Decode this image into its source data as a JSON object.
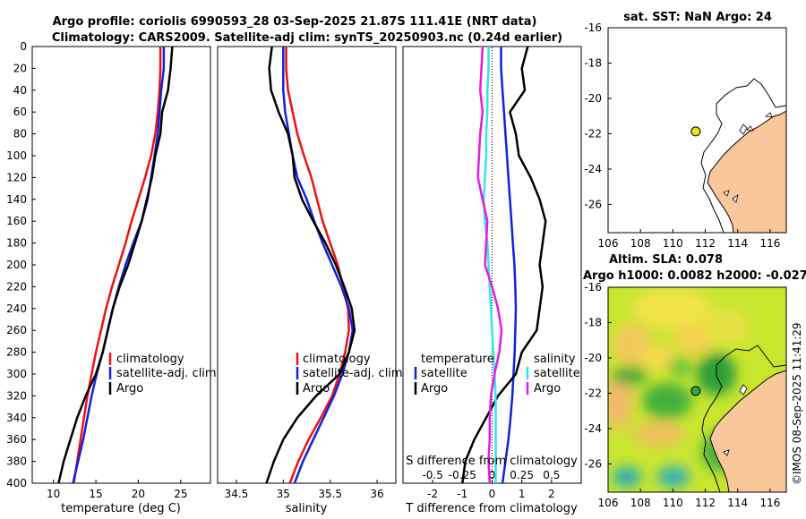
{
  "figure": {
    "title_line1": "Argo profile: coriolis 6990593_28 03-Sep-2025 21.87S 111.41E (NRT data)",
    "title_line2": "Climatology: CARS2009. Satellite-adj clim: synTS_20250903.nc (0.24d earlier)",
    "watermark": "©IMOS 08-Sep-2025 11:41:29"
  },
  "colors": {
    "climatology": "#ee1111",
    "satellite": "#1122dd",
    "argo": "#000000",
    "s_satellite": "#33e6e6",
    "s_argo": "#e61ae6",
    "land": "#f9c79a",
    "dot": "#e6e61a"
  },
  "chart_data": [
    {
      "type": "line",
      "name": "temperature-profile",
      "xlabel": "temperature (deg C)",
      "ylabel": "",
      "xlim": [
        7.5,
        28.5
      ],
      "ylim": [
        400,
        0
      ],
      "xticks": [
        "10",
        "15",
        "20",
        "25"
      ],
      "yticks": [
        "0",
        "20",
        "40",
        "60",
        "80",
        "100",
        "120",
        "140",
        "160",
        "180",
        "200",
        "220",
        "240",
        "260",
        "280",
        "300",
        "320",
        "340",
        "360",
        "380",
        "400"
      ],
      "legend": [
        "climatology",
        "satellite-adj. clim",
        "Argo"
      ],
      "series": [
        {
          "name": "climatology",
          "x": [
            22.6,
            22.6,
            22.5,
            22.3,
            22.0,
            21.5,
            20.8,
            20.0,
            19.2,
            18.5,
            17.7,
            16.9,
            16.2,
            15.6,
            15.0,
            14.5,
            14.0,
            13.6,
            13.2,
            12.8,
            12.4
          ],
          "depth": [
            0,
            20,
            40,
            60,
            80,
            100,
            120,
            140,
            160,
            180,
            200,
            220,
            240,
            260,
            280,
            300,
            320,
            340,
            360,
            380,
            400
          ]
        },
        {
          "name": "satellite-adj. clim",
          "x": [
            23.0,
            23.0,
            22.7,
            22.5,
            22.3,
            21.9,
            21.5,
            21.1,
            20.4,
            19.4,
            18.5,
            17.7,
            17.0,
            16.4,
            15.8,
            15.1,
            14.5,
            14.0,
            13.5,
            12.9,
            12.3
          ],
          "depth": [
            0,
            20,
            40,
            60,
            80,
            100,
            120,
            140,
            160,
            180,
            200,
            220,
            240,
            260,
            280,
            300,
            320,
            340,
            360,
            380,
            400
          ]
        },
        {
          "name": "Argo",
          "x": [
            24.0,
            23.8,
            23.5,
            22.8,
            22.6,
            22.0,
            21.6,
            21.0,
            20.4,
            19.6,
            18.8,
            17.8,
            17.0,
            16.4,
            15.8,
            15.0,
            13.8,
            12.8,
            12.0,
            11.2,
            10.6
          ],
          "depth": [
            0,
            20,
            40,
            60,
            80,
            100,
            120,
            140,
            160,
            180,
            200,
            220,
            240,
            260,
            280,
            300,
            320,
            340,
            360,
            380,
            400
          ]
        }
      ]
    },
    {
      "type": "line",
      "name": "salinity-profile",
      "xlabel": "salinity",
      "ylabel": "",
      "xlim": [
        34.3,
        36.2
      ],
      "ylim": [
        400,
        0
      ],
      "xticks": [
        "34.5",
        "35",
        "35.5",
        "36"
      ],
      "legend": [
        "climatology",
        "satellite-adj. clim",
        "Argo"
      ],
      "series": [
        {
          "name": "climatology",
          "x": [
            35.03,
            35.03,
            35.05,
            35.1,
            35.15,
            35.22,
            35.3,
            35.36,
            35.42,
            35.5,
            35.58,
            35.64,
            35.69,
            35.7,
            35.66,
            35.6,
            35.52,
            35.4,
            35.27,
            35.16,
            35.07
          ],
          "depth": [
            0,
            20,
            40,
            60,
            80,
            100,
            120,
            140,
            160,
            180,
            200,
            220,
            240,
            260,
            280,
            300,
            320,
            340,
            360,
            380,
            400
          ]
        },
        {
          "name": "satellite-adj. clim",
          "x": [
            35.0,
            35.0,
            35.0,
            35.02,
            35.06,
            35.1,
            35.15,
            35.25,
            35.33,
            35.42,
            35.52,
            35.62,
            35.7,
            35.74,
            35.7,
            35.63,
            35.54,
            35.43,
            35.32,
            35.21,
            35.12
          ],
          "depth": [
            0,
            20,
            40,
            60,
            80,
            100,
            120,
            140,
            160,
            180,
            200,
            220,
            240,
            260,
            280,
            300,
            320,
            340,
            360,
            380,
            400
          ]
        },
        {
          "name": "Argo",
          "x": [
            34.88,
            34.85,
            34.87,
            34.95,
            35.05,
            35.1,
            35.12,
            35.2,
            35.32,
            35.45,
            35.56,
            35.65,
            35.73,
            35.76,
            35.7,
            35.6,
            35.35,
            35.15,
            35.0,
            34.9,
            34.82
          ],
          "depth": [
            0,
            20,
            40,
            60,
            80,
            100,
            120,
            140,
            160,
            180,
            200,
            220,
            240,
            260,
            280,
            300,
            320,
            340,
            360,
            380,
            400
          ]
        }
      ]
    },
    {
      "type": "line",
      "name": "difference-from-climatology",
      "xlabel": "T difference from climatology",
      "x2label": "S difference from climatology",
      "xlim": [
        -3,
        3
      ],
      "x2lim": [
        -0.75,
        0.75
      ],
      "ylim": [
        400,
        0
      ],
      "xticks": [
        "-2",
        "-1",
        "0",
        "1",
        "2"
      ],
      "x2ticks": [
        "-0.5",
        "-0.25",
        "0",
        "0.25",
        "0.5"
      ],
      "legend_temperature": {
        "title": "temperature",
        "entries": [
          "satellite",
          "Argo"
        ]
      },
      "legend_salinity": {
        "title": "salinity",
        "entries": [
          "satellite",
          "Argo"
        ]
      },
      "series": [
        {
          "name": "temperature satellite",
          "axis": "T",
          "x": [
            0.3,
            0.3,
            0.35,
            0.4,
            0.45,
            0.5,
            0.55,
            0.6,
            0.65,
            0.7,
            0.75,
            0.78,
            0.8,
            0.78,
            0.76,
            0.72,
            0.68,
            0.62,
            0.55,
            0.45,
            0.35
          ],
          "depth": [
            0,
            20,
            40,
            60,
            80,
            100,
            120,
            140,
            160,
            180,
            200,
            220,
            240,
            260,
            280,
            300,
            320,
            340,
            360,
            380,
            400
          ]
        },
        {
          "name": "temperature Argo",
          "axis": "T",
          "x": [
            1.2,
            1.0,
            1.1,
            0.6,
            0.8,
            0.9,
            1.3,
            1.6,
            1.8,
            1.7,
            1.6,
            1.7,
            1.6,
            1.5,
            1.0,
            0.8,
            0.2,
            -0.2,
            -0.6,
            -0.9,
            -1.0
          ],
          "depth": [
            0,
            20,
            40,
            60,
            80,
            100,
            120,
            140,
            160,
            180,
            200,
            220,
            240,
            260,
            280,
            300,
            320,
            340,
            360,
            380,
            400
          ]
        },
        {
          "name": "salinity satellite",
          "axis": "S",
          "x": [
            -0.03,
            -0.03,
            -0.04,
            -0.04,
            -0.05,
            -0.05,
            -0.06,
            -0.07,
            -0.06,
            -0.04,
            -0.03,
            -0.02,
            -0.01,
            0.0,
            0.01,
            0.02,
            0.03,
            0.03,
            0.03,
            0.03,
            0.03
          ],
          "depth": [
            0,
            20,
            40,
            60,
            80,
            100,
            120,
            140,
            160,
            180,
            200,
            220,
            240,
            260,
            280,
            300,
            320,
            340,
            360,
            380,
            400
          ]
        },
        {
          "name": "salinity Argo",
          "axis": "S",
          "x": [
            -0.08,
            -0.09,
            -0.1,
            -0.08,
            -0.1,
            -0.11,
            -0.12,
            -0.08,
            -0.04,
            -0.05,
            -0.06,
            0.0,
            0.05,
            0.08,
            0.06,
            0.02,
            -0.01,
            -0.02,
            -0.02,
            -0.03,
            -0.02
          ],
          "depth": [
            0,
            20,
            40,
            60,
            80,
            100,
            120,
            140,
            160,
            180,
            200,
            220,
            240,
            260,
            280,
            300,
            320,
            340,
            360,
            380,
            400
          ]
        }
      ]
    },
    {
      "type": "map",
      "name": "sst-map",
      "title": "sat. SST: NaN Argo: 24",
      "xlim": [
        106,
        117
      ],
      "ylim": [
        -27.6,
        -16
      ],
      "xticks": [
        "106",
        "108",
        "110",
        "112",
        "114",
        "116"
      ],
      "yticks": [
        "-16",
        "-18",
        "-20",
        "-22",
        "-24",
        "-26"
      ],
      "float_position": {
        "lon": 111.41,
        "lat": -21.87
      }
    },
    {
      "type": "heatmap",
      "name": "sla-map",
      "title_line1": "Altim. SLA: 0.078",
      "title_line2": "Argo h1000: 0.0082 h2000: -0.027",
      "xlim": [
        106,
        117
      ],
      "ylim": [
        -27.6,
        -16
      ],
      "xticks": [
        "106",
        "108",
        "110",
        "112",
        "114",
        "116"
      ],
      "yticks": [
        "-16",
        "-18",
        "-20",
        "-22",
        "-24",
        "-26"
      ],
      "float_position": {
        "lon": 111.41,
        "lat": -21.87
      }
    }
  ]
}
